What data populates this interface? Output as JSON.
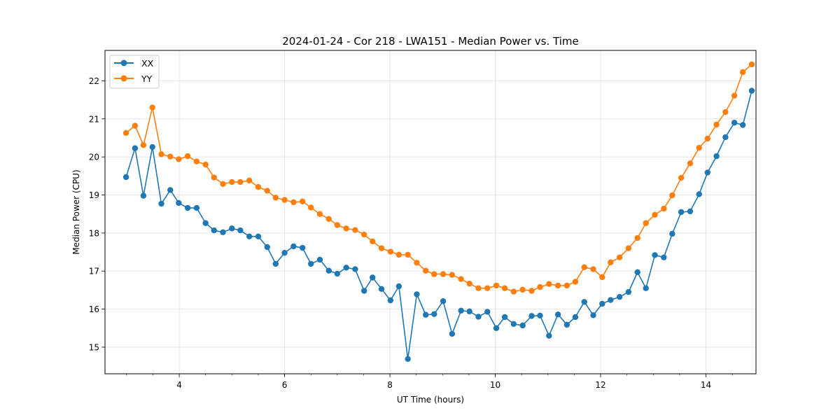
{
  "chart_data": {
    "type": "line",
    "title": "2024-01-24 - Cor 218 - LWA151 - Median Power vs. Time",
    "xlabel": "UT Time (hours)",
    "ylabel": "Median Power (CPU)",
    "xlim": [
      2.59,
      14.95
    ],
    "ylim": [
      14.3,
      22.8
    ],
    "xticks": [
      4,
      6,
      8,
      10,
      12,
      14
    ],
    "xticks_minor": [
      3.0,
      3.5,
      4.5,
      5.0,
      5.5,
      6.5,
      7.0,
      7.5,
      8.5,
      9.0,
      9.5,
      10.5,
      11.0,
      11.5,
      12.5,
      13.0,
      13.5,
      14.5
    ],
    "yticks": [
      15,
      16,
      17,
      18,
      19,
      20,
      21,
      22
    ],
    "grid": true,
    "legend": "top-left",
    "x": [
      2.99,
      3.16,
      3.32,
      3.49,
      3.66,
      3.83,
      3.99,
      4.16,
      4.33,
      4.5,
      4.66,
      4.83,
      5.0,
      5.16,
      5.33,
      5.5,
      5.67,
      5.83,
      6.0,
      6.17,
      6.34,
      6.5,
      6.67,
      6.84,
      7.0,
      7.17,
      7.34,
      7.51,
      7.67,
      7.84,
      8.01,
      8.17,
      8.34,
      8.51,
      8.68,
      8.84,
      9.01,
      9.18,
      9.35,
      9.51,
      9.68,
      9.85,
      10.02,
      10.18,
      10.35,
      10.52,
      10.69,
      10.85,
      11.02,
      11.19,
      11.36,
      11.52,
      11.69,
      11.86,
      12.03,
      12.19,
      12.36,
      12.53,
      12.7,
      12.86,
      13.03,
      13.2,
      13.36,
      13.53,
      13.7,
      13.87,
      14.03,
      14.2,
      14.37,
      14.54,
      14.7,
      14.87
    ],
    "series": [
      {
        "name": "XX",
        "color": "#1f77b4",
        "values": [
          19.47,
          20.23,
          18.98,
          20.26,
          18.77,
          19.13,
          18.79,
          18.66,
          18.66,
          18.26,
          18.07,
          18.02,
          18.12,
          18.07,
          17.91,
          17.91,
          17.63,
          17.19,
          17.48,
          17.65,
          17.61,
          17.19,
          17.3,
          17.01,
          16.93,
          17.09,
          17.05,
          16.48,
          16.83,
          16.53,
          16.23,
          16.6,
          14.69,
          16.39,
          15.85,
          15.87,
          16.21,
          15.35,
          15.96,
          15.94,
          15.8,
          15.93,
          15.5,
          15.79,
          15.61,
          15.57,
          15.82,
          15.83,
          15.3,
          15.86,
          15.59,
          15.79,
          16.19,
          15.84,
          16.14,
          16.24,
          16.32,
          16.45,
          16.97,
          16.55,
          17.42,
          17.36,
          17.98,
          18.55,
          18.57,
          19.02,
          19.59,
          20.02,
          20.52,
          20.9,
          20.84,
          21.74
        ]
      },
      {
        "name": "YY",
        "color": "#ff7f0e",
        "values": [
          20.63,
          20.82,
          20.31,
          21.3,
          20.07,
          20.01,
          19.94,
          20.02,
          19.88,
          19.8,
          19.46,
          19.29,
          19.34,
          19.34,
          19.38,
          19.21,
          19.11,
          18.93,
          18.87,
          18.81,
          18.83,
          18.67,
          18.5,
          18.37,
          18.21,
          18.12,
          18.08,
          17.96,
          17.78,
          17.6,
          17.51,
          17.43,
          17.43,
          17.22,
          17.01,
          16.92,
          16.92,
          16.9,
          16.79,
          16.67,
          16.55,
          16.55,
          16.62,
          16.55,
          16.46,
          16.51,
          16.48,
          16.58,
          16.66,
          16.62,
          16.62,
          16.72,
          17.1,
          17.05,
          16.84,
          17.23,
          17.36,
          17.6,
          17.87,
          18.26,
          18.48,
          18.64,
          18.99,
          19.45,
          19.83,
          20.24,
          20.48,
          20.85,
          21.18,
          21.61,
          22.23,
          22.43
        ]
      }
    ]
  }
}
